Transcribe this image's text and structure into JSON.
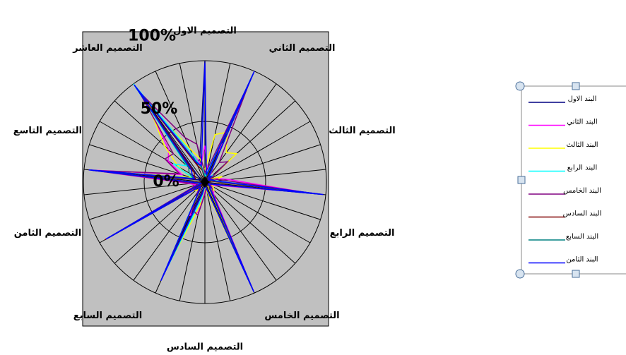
{
  "chart_data": {
    "type": "radar",
    "categories": [
      "التصميم الاول",
      null,
      null,
      "التصميم الثاني",
      null,
      null,
      "التصميم الثالث",
      null,
      null,
      "التصميم الرابع",
      null,
      null,
      "التصميم الخامس",
      null,
      null,
      "التصميم السادس",
      null,
      null,
      "التصميم السابع",
      null,
      null,
      "التصميم الثامن",
      null,
      null,
      "التصميم التاسع",
      null,
      null,
      "التصميم العاشر",
      null,
      null
    ],
    "ylim": [
      0,
      100
    ],
    "yticks": [
      {
        "value": 0,
        "label": "0%"
      },
      {
        "value": 50,
        "label": "50%"
      },
      {
        "value": 100,
        "label": "100%"
      }
    ],
    "grid": true,
    "legend": "right",
    "series": [
      {
        "name": "البند الاول",
        "color": "#000080",
        "values": [
          100,
          5,
          98,
          4,
          6,
          2,
          5,
          8,
          95,
          4,
          2,
          5,
          6,
          98,
          4,
          2,
          5,
          88,
          6,
          4,
          92,
          2,
          5,
          95,
          6,
          4,
          8,
          98,
          15,
          20
        ]
      },
      {
        "name": "البند الثاني",
        "color": "#ff00ff",
        "values": [
          30,
          10,
          35,
          8,
          5,
          2,
          10,
          20,
          85,
          8,
          5,
          10,
          12,
          92,
          5,
          8,
          25,
          30,
          10,
          5,
          20,
          8,
          12,
          95,
          20,
          35,
          40,
          85,
          25,
          15
        ]
      },
      {
        "name": "البند الثالث",
        "color": "#ffff00",
        "values": [
          10,
          40,
          45,
          30,
          35,
          5,
          15,
          8,
          80,
          5,
          8,
          10,
          5,
          90,
          8,
          5,
          20,
          80,
          8,
          10,
          15,
          5,
          8,
          92,
          12,
          25,
          45,
          80,
          30,
          20
        ]
      },
      {
        "name": "البند الرابع",
        "color": "#00ffff",
        "values": [
          5,
          8,
          98,
          5,
          8,
          4,
          5,
          10,
          92,
          5,
          4,
          8,
          6,
          95,
          5,
          4,
          15,
          85,
          8,
          5,
          90,
          5,
          6,
          95,
          10,
          30,
          20,
          100,
          25,
          12
        ]
      },
      {
        "name": "البند الخامس",
        "color": "#800080",
        "values": [
          8,
          12,
          90,
          20,
          25,
          5,
          8,
          15,
          88,
          6,
          5,
          8,
          10,
          94,
          5,
          10,
          28,
          25,
          10,
          6,
          88,
          6,
          10,
          92,
          22,
          38,
          35,
          92,
          40,
          32
        ]
      },
      {
        "name": "البند السادس",
        "color": "#800000",
        "values": [
          2,
          4,
          95,
          5,
          6,
          2,
          4,
          6,
          92,
          4,
          2,
          5,
          6,
          96,
          4,
          2,
          8,
          85,
          6,
          4,
          95,
          2,
          5,
          94,
          8,
          10,
          12,
          96,
          15,
          10
        ]
      },
      {
        "name": "البند السابع",
        "color": "#008080",
        "values": [
          4,
          5,
          94,
          6,
          7,
          3,
          5,
          8,
          96,
          5,
          3,
          6,
          7,
          95,
          5,
          3,
          10,
          86,
          7,
          5,
          91,
          3,
          6,
          93,
          10,
          15,
          18,
          95,
          20,
          12
        ]
      },
      {
        "name": "البند الثامن",
        "color": "#0000ff",
        "values": [
          98,
          6,
          100,
          5,
          7,
          3,
          6,
          9,
          98,
          5,
          3,
          6,
          8,
          99,
          5,
          3,
          9,
          89,
          7,
          5,
          94,
          3,
          6,
          96,
          9,
          12,
          15,
          99,
          18,
          14
        ]
      }
    ]
  }
}
